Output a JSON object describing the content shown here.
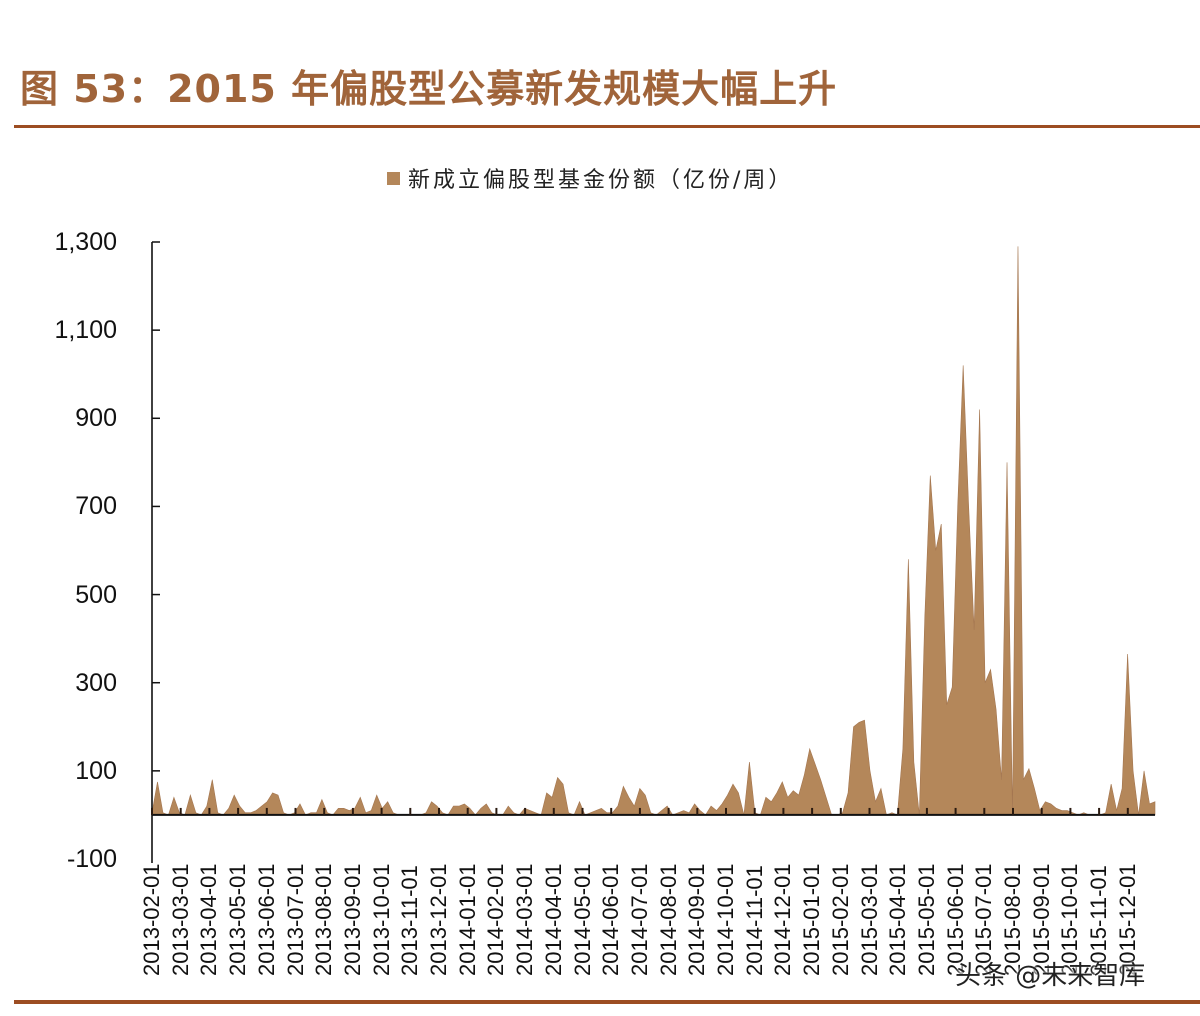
{
  "header": {
    "title": "图 53：2015 年偏股型公募新发规模大幅上升"
  },
  "watermark": "头条 @未来智库",
  "colors": {
    "accent": "#9c4d22",
    "title": "#a0643a",
    "area_fill": "#b4875a",
    "axis": "#111111"
  },
  "chart_data": {
    "type": "area",
    "title": "图 53：2015 年偏股型公募新发规模大幅上升",
    "legend": [
      {
        "name": "新成立偏股型基金份额（亿份/周）",
        "color": "#b4875a"
      }
    ],
    "legend_position": "top",
    "xlabel": "",
    "ylabel": "",
    "ylim": [
      -100,
      1300
    ],
    "yticks": [
      "1,300",
      "1,100",
      "900",
      "700",
      "500",
      "300",
      "100",
      "-100"
    ],
    "ytick_values": [
      1300,
      1100,
      900,
      700,
      500,
      300,
      100,
      -100
    ],
    "grid": false,
    "x_tick_labels": [
      "2013-02-01",
      "2013-03-01",
      "2013-04-01",
      "2013-05-01",
      "2013-06-01",
      "2013-07-01",
      "2013-08-01",
      "2013-09-01",
      "2013-10-01",
      "2013-11-01",
      "2013-12-01",
      "2014-01-01",
      "2014-02-01",
      "2014-03-01",
      "2014-04-01",
      "2014-05-01",
      "2014-06-01",
      "2014-07-01",
      "2014-08-01",
      "2014-09-01",
      "2014-10-01",
      "2014-11-01",
      "2014-12-01",
      "2015-01-01",
      "2015-02-01",
      "2015-03-01",
      "2015-04-01",
      "2015-05-01",
      "2015-06-01",
      "2015-07-01",
      "2015-08-01",
      "2015-09-01",
      "2015-10-01",
      "2015-11-01",
      "2015-12-01"
    ],
    "frequency": "weekly",
    "series": [
      {
        "name": "新成立偏股型基金份额（亿份/周）",
        "values": [
          5,
          75,
          5,
          0,
          40,
          5,
          0,
          45,
          5,
          0,
          20,
          80,
          5,
          0,
          15,
          45,
          20,
          5,
          5,
          10,
          20,
          30,
          50,
          45,
          5,
          0,
          5,
          25,
          0,
          5,
          5,
          35,
          5,
          0,
          15,
          15,
          10,
          15,
          40,
          5,
          10,
          45,
          15,
          30,
          5,
          0,
          0,
          0,
          0,
          0,
          5,
          30,
          20,
          5,
          0,
          20,
          20,
          25,
          15,
          0,
          15,
          25,
          5,
          0,
          0,
          20,
          5,
          0,
          15,
          10,
          5,
          0,
          50,
          40,
          85,
          70,
          5,
          0,
          30,
          0,
          5,
          10,
          15,
          5,
          5,
          20,
          65,
          40,
          20,
          60,
          45,
          5,
          0,
          10,
          20,
          0,
          5,
          10,
          5,
          25,
          10,
          0,
          20,
          10,
          25,
          45,
          70,
          50,
          0,
          120,
          5,
          0,
          40,
          30,
          50,
          75,
          40,
          55,
          45,
          90,
          150,
          115,
          80,
          40,
          0,
          0,
          5,
          50,
          200,
          210,
          215,
          100,
          30,
          60,
          0,
          5,
          0,
          150,
          580,
          120,
          0,
          450,
          770,
          600,
          660,
          250,
          290,
          700,
          1020,
          700,
          420,
          920,
          300,
          330,
          240,
          80,
          800,
          0,
          1290,
          80,
          105,
          60,
          10,
          30,
          25,
          15,
          10,
          10,
          5,
          0,
          5,
          0,
          0,
          0,
          5,
          70,
          10,
          60,
          365,
          100,
          0,
          100,
          25,
          30
        ]
      }
    ]
  }
}
